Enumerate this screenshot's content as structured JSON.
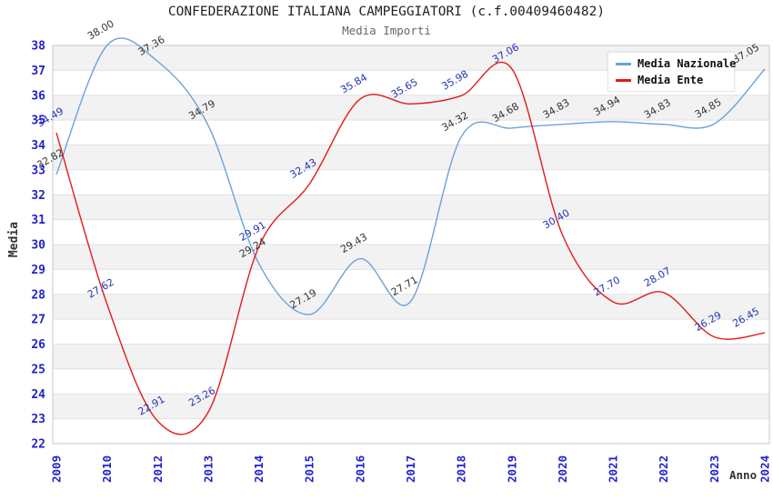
{
  "chart_data": {
    "type": "line",
    "title": "CONFEDERAZIONE ITALIANA CAMPEGGIATORI (c.f.00409460482)",
    "subtitle": "Media Importi",
    "xlabel": "Anno",
    "ylabel": "Media",
    "ylim": [
      22,
      38
    ],
    "y_tick_step": 1,
    "grid": "horizontal-bands-alternating",
    "legend_position": "top-right",
    "line_style": "spline",
    "categories": [
      "2009",
      "2010",
      "2012",
      "2013",
      "2014",
      "2015",
      "2016",
      "2017",
      "2018",
      "2019",
      "2020",
      "2021",
      "2022",
      "2023",
      "2024"
    ],
    "series": [
      {
        "name": "Media Nazionale",
        "color": "#6aa2dc",
        "label_color": "#333333",
        "values": [
          32.82,
          38.0,
          37.36,
          34.79,
          29.24,
          27.19,
          29.43,
          27.71,
          34.32,
          34.68,
          34.83,
          34.94,
          34.83,
          34.85,
          37.05
        ]
      },
      {
        "name": "Media Ente",
        "color": "#e31a1a",
        "label_color": "#2233bb",
        "values": [
          34.49,
          27.62,
          22.91,
          23.26,
          29.91,
          32.43,
          35.84,
          35.65,
          35.98,
          37.06,
          30.4,
          27.7,
          28.07,
          26.29,
          26.45
        ]
      }
    ],
    "colors": {
      "axis_tick_label": "#2222cc",
      "axis_title": "#333333",
      "band_fill": "#f2f2f2",
      "grid_line": "#e2e2e2",
      "plot_border": "#c8c8c8",
      "background": "#ffffff"
    }
  }
}
